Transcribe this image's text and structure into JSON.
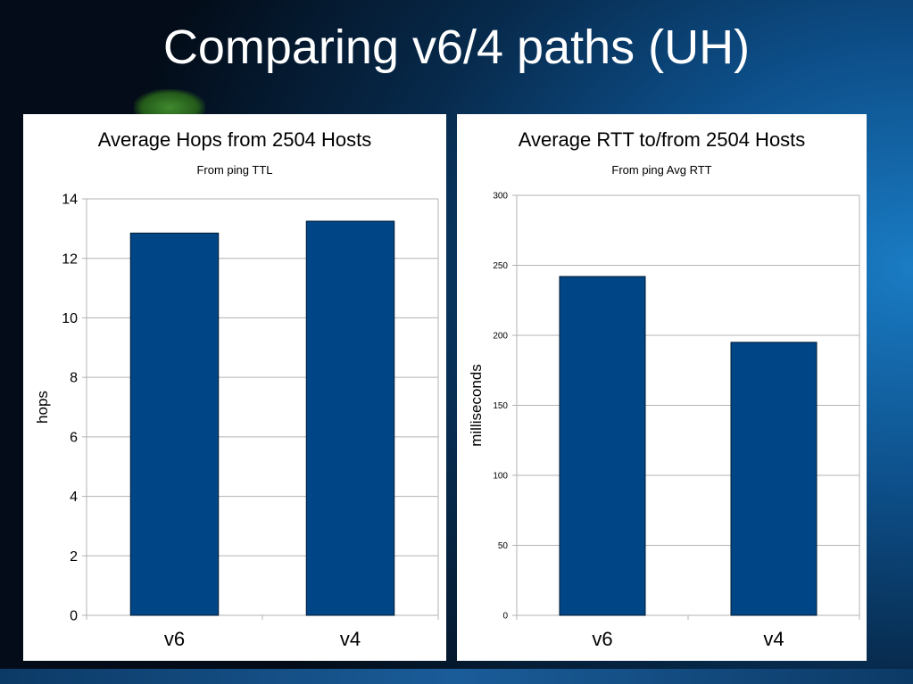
{
  "slide": {
    "title": "Comparing v6/4 paths (UH)"
  },
  "colors": {
    "bar_fill": "#004586",
    "bar_stroke": "#001a33",
    "grid": "#b3b3b3",
    "panel": "#ffffff"
  },
  "chart_data": [
    {
      "type": "bar",
      "title": "Average Hops from 2504 Hosts",
      "subtitle": "From ping TTL",
      "xlabel": "",
      "ylabel": "hops",
      "categories": [
        "v6",
        "v4"
      ],
      "values": [
        12.85,
        13.25
      ],
      "ylim": [
        0,
        14
      ],
      "yticks": [
        0,
        2,
        4,
        6,
        8,
        10,
        12,
        14
      ],
      "grid": true,
      "legend": "none"
    },
    {
      "type": "bar",
      "title": "Average RTT to/from 2504 Hosts",
      "subtitle": "From ping Avg RTT",
      "xlabel": "",
      "ylabel": "milliseconds",
      "categories": [
        "v6",
        "v4"
      ],
      "values": [
        242,
        195
      ],
      "ylim": [
        0,
        300
      ],
      "yticks": [
        0,
        50,
        100,
        150,
        200,
        250,
        300
      ],
      "grid": true,
      "legend": "none"
    }
  ]
}
